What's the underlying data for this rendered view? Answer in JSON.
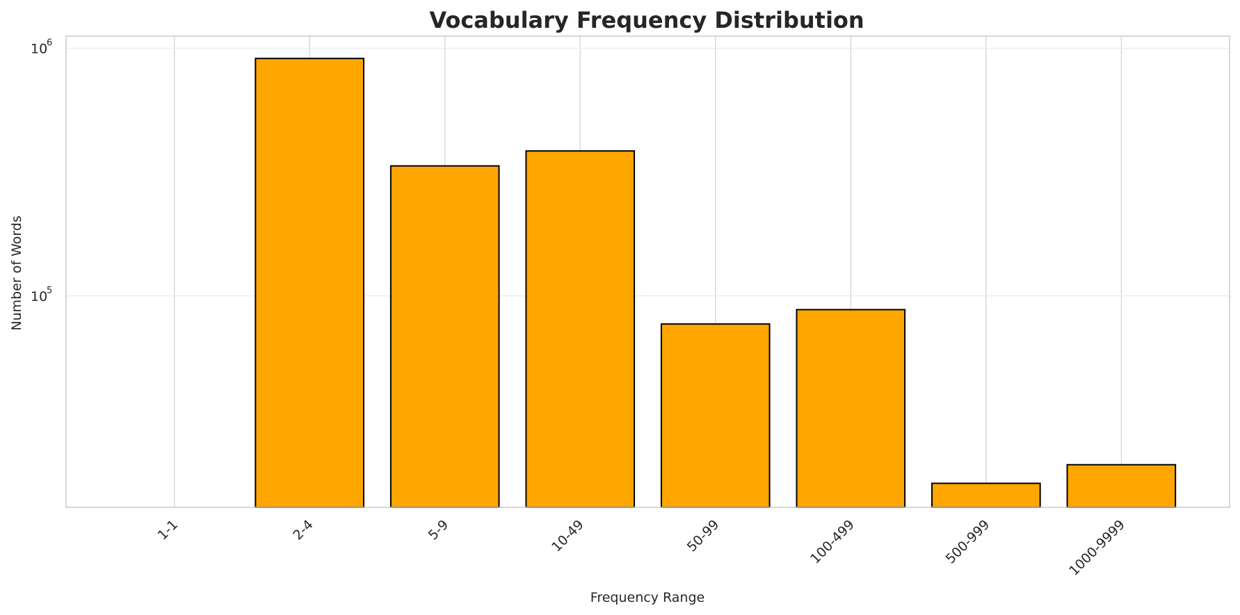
{
  "chart_data": {
    "type": "bar",
    "title": "Vocabulary Frequency Distribution",
    "xlabel": "Frequency Range",
    "ylabel": "Number of Words",
    "yscale": "log",
    "categories": [
      "1-1",
      "2-4",
      "5-9",
      "10-49",
      "50-99",
      "100-499",
      "500-999",
      "1000-9999"
    ],
    "values": [
      null,
      910000,
      335000,
      385000,
      77000,
      88000,
      17500,
      20800
    ],
    "ylim": [
      14000,
      1120000
    ],
    "yticks": [
      {
        "base": "10",
        "exp": "5",
        "value": 100000
      },
      {
        "base": "10",
        "exp": "6",
        "value": 1000000
      }
    ],
    "grid": true,
    "bar_color": "#FFA500",
    "edge_color": "#000000",
    "grid_color": "#d9d9d9",
    "spine_color": "#cccccc"
  }
}
